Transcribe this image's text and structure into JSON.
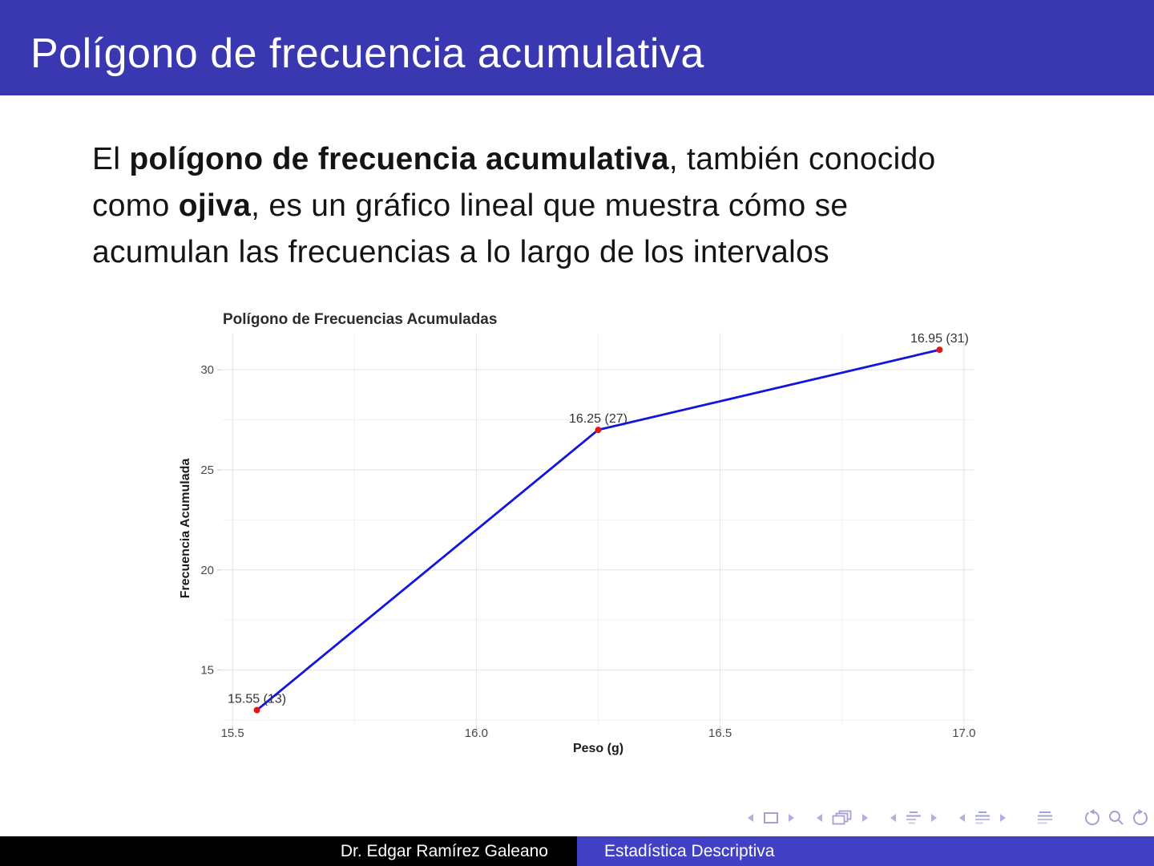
{
  "slide": {
    "title": "Polígono de frecuencia acumulativa",
    "body": {
      "l1a": "El ",
      "l1b": "polígono de frecuencia acumulativa",
      "l1c": ", también conocido",
      "l2a": "como ",
      "l2b": "ojiva",
      "l2c": ", es un gráfico lineal que muestra cómo se",
      "l3": "acumulan las frecuencias a lo largo de los intervalos"
    }
  },
  "chart_data": {
    "type": "line",
    "title": "Polígono de Frecuencias Acumuladas",
    "xlabel": "Peso (g)",
    "ylabel": "Frecuencia Acumulada",
    "x": [
      15.55,
      16.25,
      16.95
    ],
    "y": [
      13,
      27,
      31
    ],
    "point_labels": [
      "15.55 (13)",
      "16.25 (27)",
      "16.95 (31)"
    ],
    "xticks": [
      15.5,
      16.0,
      16.5,
      17.0
    ],
    "xtick_labels": [
      "15.5",
      "16.0",
      "16.5",
      "17.0"
    ],
    "yticks": [
      15,
      20,
      25,
      30
    ],
    "ytick_labels": [
      "15",
      "20",
      "25",
      "30"
    ],
    "x_minor": [
      15.75,
      16.25,
      16.75
    ],
    "y_minor": [
      12.5,
      17.5,
      22.5,
      27.5
    ],
    "xlim": [
      15.48,
      17.02
    ],
    "ylim": [
      12.3,
      31.85
    ],
    "grid": true,
    "legend": "none",
    "line_color": "#1414e0",
    "point_color": "#e8140f",
    "major_grid_color": "#e3e3e3",
    "minor_grid_color": "#f0f0f0"
  },
  "footer": {
    "author": "Dr. Edgar Ramírez Galeano",
    "course": "Estadística Descriptiva"
  },
  "nav": {
    "symbols": [
      "prev-slide",
      "frame",
      "next-slide",
      "prev-frame",
      "frames",
      "next-frame",
      "prev-section",
      "section",
      "next-section",
      "prev-subsection",
      "subsection",
      "next-subsection",
      "appendix",
      "history-back",
      "search",
      "history-forward"
    ]
  },
  "colors": {
    "header_bg": "#3a38b0",
    "footer_left_bg": "#000000",
    "footer_right_bg": "#4240c4",
    "nav_icon": "#a2a1d8"
  }
}
